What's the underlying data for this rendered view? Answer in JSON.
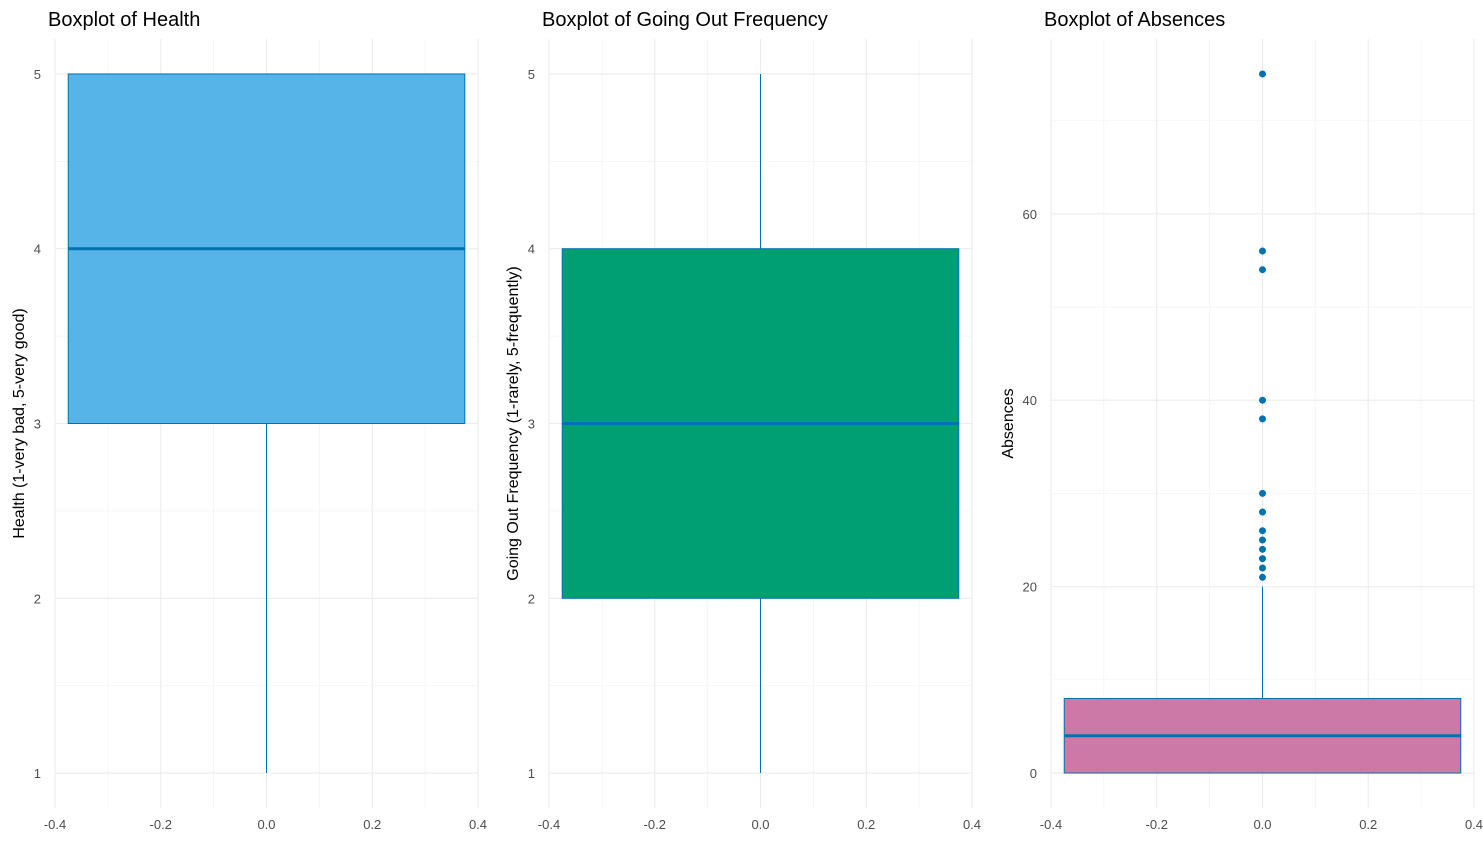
{
  "chart_data": [
    {
      "type": "boxplot",
      "title": "Boxplot of Health",
      "xlabel": "",
      "ylabel": "Health (1-very bad, 5-very good)",
      "xlim": [
        -0.4,
        0.4
      ],
      "ylim": [
        0.8,
        5.2
      ],
      "x_ticks": [
        -0.4,
        -0.2,
        0.0,
        0.2,
        0.4
      ],
      "x_tick_labels": [
        "-0.4",
        "-0.2",
        "0.0",
        "0.2",
        "0.4"
      ],
      "y_ticks": [
        1,
        2,
        3,
        4,
        5
      ],
      "y_tick_labels": [
        "1",
        "2",
        "3",
        "4",
        "5"
      ],
      "grid": true,
      "box": {
        "min": 1,
        "q1": 3,
        "median": 4,
        "q3": 5,
        "max": 5,
        "x_left": -0.375,
        "x_right": 0.375,
        "center": 0
      },
      "outliers": [],
      "fill_color": "#56B4E9",
      "line_color": "#0072B2"
    },
    {
      "type": "boxplot",
      "title": "Boxplot of Going Out Frequency",
      "xlabel": "",
      "ylabel": "Going Out Frequency (1-rarely, 5-frequently)",
      "xlim": [
        -0.4,
        0.4
      ],
      "ylim": [
        0.8,
        5.2
      ],
      "x_ticks": [
        -0.4,
        -0.2,
        0.0,
        0.2,
        0.4
      ],
      "x_tick_labels": [
        "-0.4",
        "-0.2",
        "0.0",
        "0.2",
        "0.4"
      ],
      "y_ticks": [
        1,
        2,
        3,
        4,
        5
      ],
      "y_tick_labels": [
        "1",
        "2",
        "3",
        "4",
        "5"
      ],
      "grid": true,
      "box": {
        "min": 1,
        "q1": 2,
        "median": 3,
        "q3": 4,
        "max": 5,
        "x_left": -0.375,
        "x_right": 0.375,
        "center": 0
      },
      "outliers": [],
      "fill_color": "#009E73",
      "line_color": "#0072B2"
    },
    {
      "type": "boxplot",
      "title": "Boxplot of Absences",
      "xlabel": "",
      "ylabel": "Absences",
      "xlim": [
        -0.4,
        0.4
      ],
      "ylim": [
        -3.75,
        78.75
      ],
      "x_ticks": [
        -0.4,
        -0.2,
        0.0,
        0.2,
        0.4
      ],
      "x_tick_labels": [
        "-0.4",
        "-0.2",
        "0.0",
        "0.2",
        "0.4"
      ],
      "y_ticks": [
        0,
        20,
        40,
        60
      ],
      "y_tick_labels": [
        "0",
        "20",
        "40",
        "60"
      ],
      "grid": true,
      "box": {
        "min": 0,
        "q1": 0,
        "median": 4,
        "q3": 8,
        "max": 20,
        "x_left": -0.375,
        "x_right": 0.375,
        "center": 0
      },
      "outliers": [
        21,
        22,
        23,
        24,
        25,
        26,
        28,
        30,
        38,
        40,
        54,
        56,
        75
      ],
      "fill_color": "#CC79A7",
      "line_color": "#0072B2"
    }
  ]
}
